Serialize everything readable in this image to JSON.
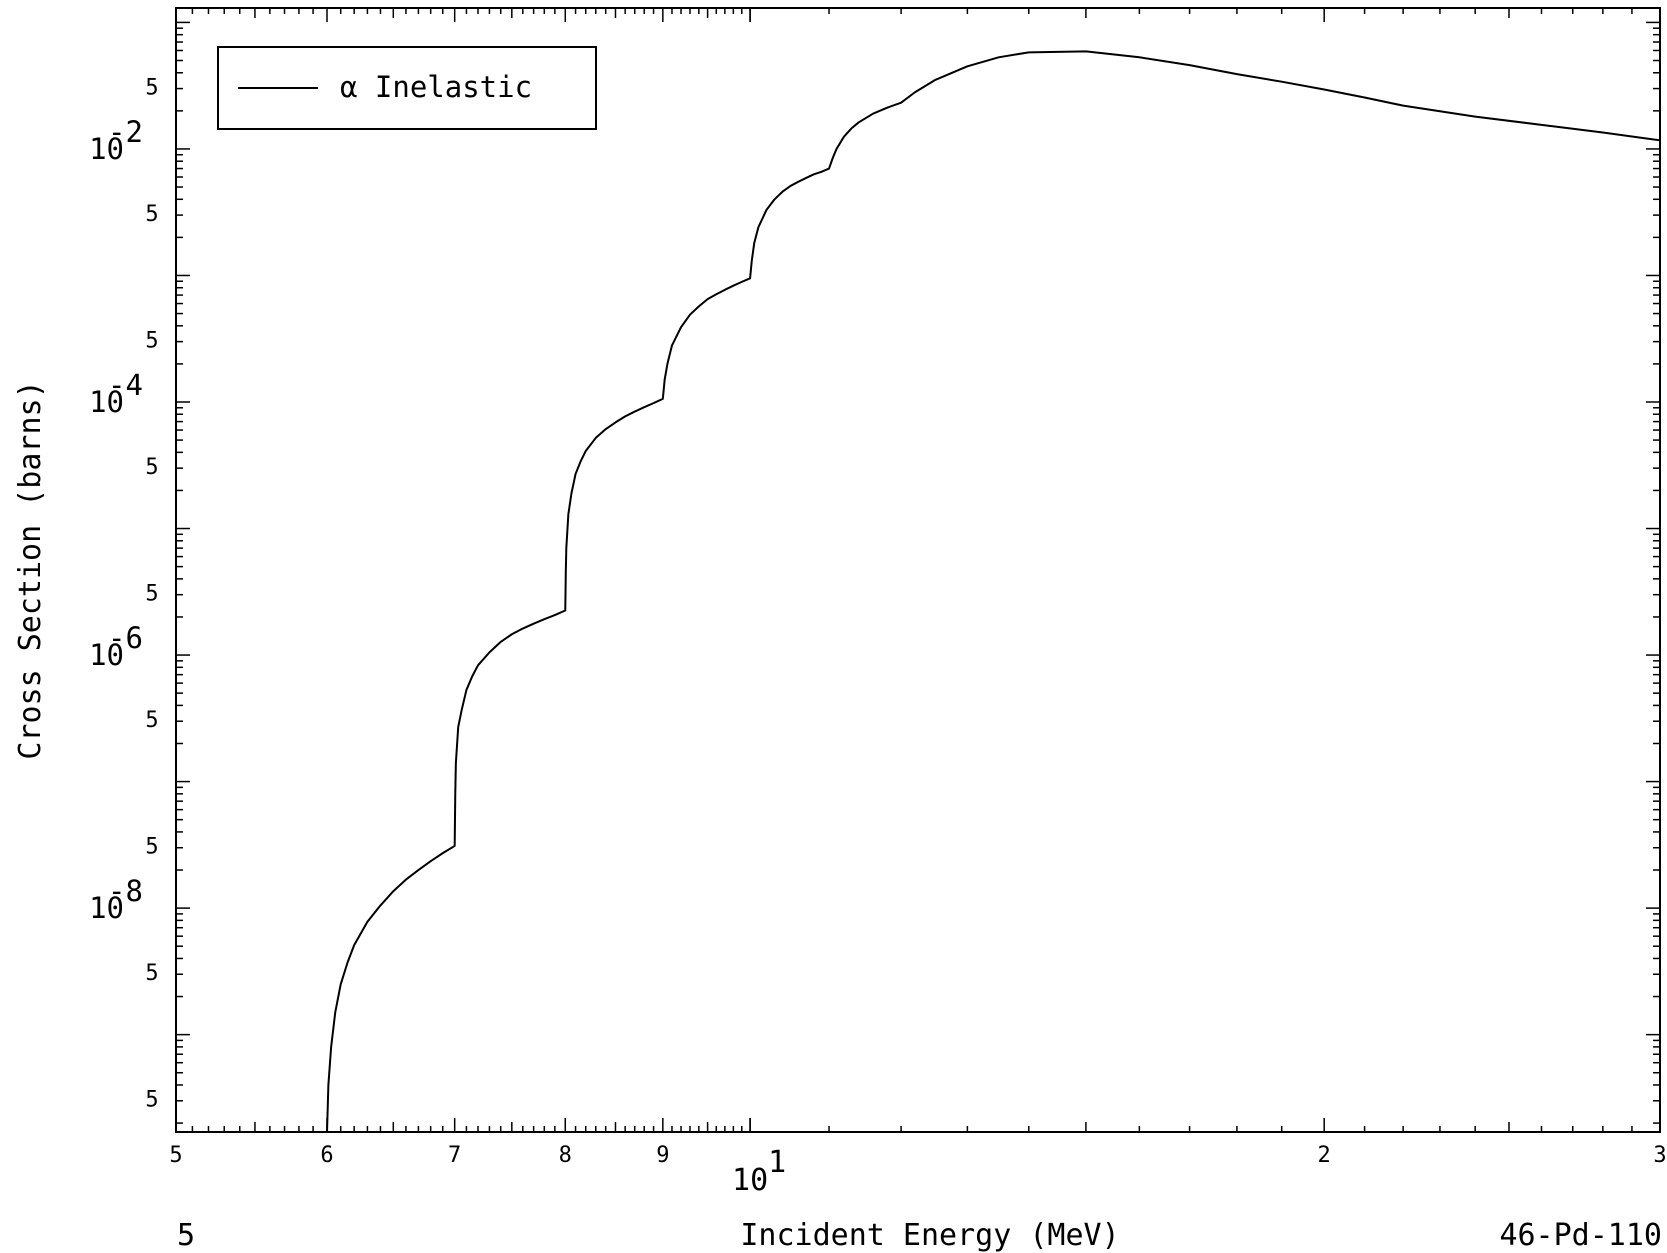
{
  "chart_data": {
    "type": "line",
    "title": "",
    "xlabel": "Incident Energy (MeV)",
    "ylabel": "Cross Section (barns)",
    "x_scale": "log",
    "y_scale": "log",
    "xlim": [
      5,
      30
    ],
    "ylim": [
      1.7e-10,
      0.13
    ],
    "legend": {
      "placement": "top-left",
      "entries": [
        "α Inelastic"
      ]
    },
    "corner_left_label": "5",
    "corner_right_label": "46-Pd-110",
    "x_major_ticks": [
      {
        "value": 10,
        "base": "10",
        "exp": "1"
      }
    ],
    "x_minor_labels": [
      {
        "value": 5,
        "label": "5"
      },
      {
        "value": 6,
        "label": "6"
      },
      {
        "value": 7,
        "label": "7"
      },
      {
        "value": 8,
        "label": "8"
      },
      {
        "value": 9,
        "label": "9"
      },
      {
        "value": 20,
        "label": "2"
      },
      {
        "value": 30,
        "label": "3"
      }
    ],
    "y_major_ticks": [
      {
        "value": 0.01,
        "base": "10",
        "exp": "-2"
      },
      {
        "value": 0.0001,
        "base": "10",
        "exp": "-4"
      },
      {
        "value": 1e-06,
        "base": "10",
        "exp": "-6"
      },
      {
        "value": 1e-08,
        "base": "10",
        "exp": "-8"
      }
    ],
    "y_minor_labels": [
      {
        "value": 0.05,
        "label": "5"
      },
      {
        "value": 0.005,
        "label": "5"
      },
      {
        "value": 0.0005,
        "label": "5"
      },
      {
        "value": 5e-05,
        "label": "5"
      },
      {
        "value": 5e-06,
        "label": "5"
      },
      {
        "value": 5e-07,
        "label": "5"
      },
      {
        "value": 5e-08,
        "label": "5"
      },
      {
        "value": 5e-09,
        "label": "5"
      },
      {
        "value": 5e-10,
        "label": "5"
      }
    ],
    "series": [
      {
        "name": "α Inelastic",
        "color": "#000000",
        "x": [
          6.0,
          6.01,
          6.03,
          6.06,
          6.1,
          6.15,
          6.2,
          6.3,
          6.4,
          6.5,
          6.6,
          6.7,
          6.8,
          6.9,
          7.0,
          7.005,
          7.01,
          7.03,
          7.06,
          7.1,
          7.15,
          7.2,
          7.3,
          7.4,
          7.5,
          7.6,
          7.7,
          7.8,
          7.9,
          8.0,
          8.005,
          8.01,
          8.03,
          8.06,
          8.1,
          8.15,
          8.2,
          8.3,
          8.4,
          8.5,
          8.6,
          8.7,
          8.8,
          8.9,
          9.0,
          9.02,
          9.05,
          9.1,
          9.2,
          9.3,
          9.4,
          9.5,
          9.6,
          9.7,
          9.8,
          9.9,
          10.0,
          10.02,
          10.05,
          10.1,
          10.2,
          10.3,
          10.4,
          10.5,
          10.6,
          10.7,
          10.8,
          10.9,
          11.0,
          11.05,
          11.1,
          11.2,
          11.3,
          11.4,
          11.6,
          11.8,
          12.0,
          12.2,
          12.5,
          13.0,
          13.5,
          14.0,
          15.0,
          16.0,
          17.0,
          18.0,
          19.0,
          20.0,
          21.0,
          22.0,
          24.0,
          26.0,
          28.0,
          30.0
        ],
        "values": [
          1.7e-10,
          4e-10,
          8e-10,
          1.5e-09,
          2.5e-09,
          3.7e-09,
          5.1e-09,
          7.8e-09,
          1.05e-08,
          1.36e-08,
          1.68e-08,
          2e-08,
          2.35e-08,
          2.72e-08,
          3.1e-08,
          8e-08,
          1.4e-07,
          2.7e-07,
          3.7e-07,
          5.3e-07,
          6.8e-07,
          8.3e-07,
          1.05e-06,
          1.27e-06,
          1.46e-06,
          1.62e-06,
          1.77e-06,
          1.92e-06,
          2.07e-06,
          2.25e-06,
          4.5e-06,
          7e-06,
          1.3e-05,
          1.9e-05,
          2.7e-05,
          3.4e-05,
          4.1e-05,
          5.2e-05,
          6.1e-05,
          6.9e-05,
          7.7e-05,
          8.4e-05,
          9.1e-05,
          9.8e-05,
          0.000106,
          0.00015,
          0.0002,
          0.00028,
          0.00039,
          0.00049,
          0.00057,
          0.00065,
          0.00071,
          0.00077,
          0.00083,
          0.00089,
          0.00095,
          0.0013,
          0.0018,
          0.0024,
          0.0033,
          0.004,
          0.0046,
          0.0051,
          0.0055,
          0.0059,
          0.0063,
          0.0066,
          0.007,
          0.0085,
          0.01,
          0.0125,
          0.0145,
          0.0162,
          0.019,
          0.0212,
          0.0232,
          0.028,
          0.035,
          0.045,
          0.053,
          0.058,
          0.059,
          0.053,
          0.046,
          0.039,
          0.034,
          0.0295,
          0.0255,
          0.022,
          0.018,
          0.0155,
          0.0135,
          0.0117
        ]
      }
    ]
  }
}
